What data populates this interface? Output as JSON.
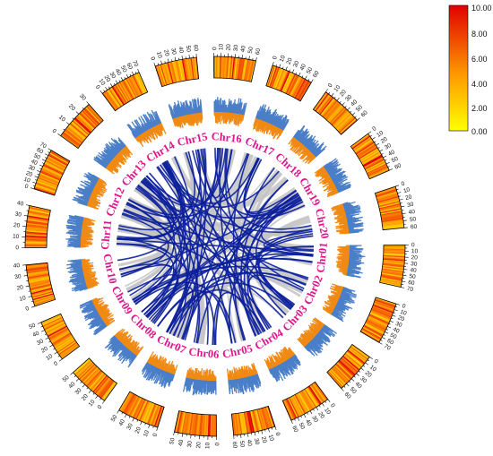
{
  "colors": {
    "label": "#e0148c",
    "link_main": "#0b1f9c",
    "link_background": "#c4c4c4",
    "density_outer": "#4a7fc8",
    "density_inner": "#f08a14",
    "heat_low": "#ffff00",
    "heat_mid": "#ff8c00",
    "heat_high": "#e00000",
    "ideogram_outline": "#000000"
  },
  "chromosomes": [
    {
      "name": "Chr01",
      "max": 70,
      "ticks": [
        "0",
        "10",
        "20",
        "30",
        "40",
        "50",
        "60",
        "70"
      ]
    },
    {
      "name": "Chr02",
      "max": 70,
      "ticks": [
        "0",
        "10",
        "20",
        "30",
        "40",
        "50",
        "60",
        "70"
      ]
    },
    {
      "name": "Chr03",
      "max": 60,
      "ticks": [
        "0",
        "10",
        "20",
        "30",
        "40",
        "50",
        "60"
      ]
    },
    {
      "name": "Chr04",
      "max": 60,
      "ticks": [
        "0",
        "10",
        "20",
        "30",
        "40",
        "50",
        "60"
      ]
    },
    {
      "name": "Chr05",
      "max": 60,
      "ticks": [
        "0",
        "10",
        "20",
        "30",
        "40",
        "50",
        "60"
      ]
    },
    {
      "name": "Chr06",
      "max": 50,
      "ticks": [
        "0",
        "10",
        "20",
        "30",
        "40",
        "50"
      ]
    },
    {
      "name": "Chr07",
      "max": 50,
      "ticks": [
        "0",
        "10",
        "20",
        "30",
        "40",
        "50"
      ]
    },
    {
      "name": "Chr08",
      "max": 50,
      "ticks": [
        "0",
        "10",
        "20",
        "30",
        "40",
        "50"
      ]
    },
    {
      "name": "Chr09",
      "max": 50,
      "ticks": [
        "0",
        "10",
        "20",
        "30",
        "40",
        "50"
      ]
    },
    {
      "name": "Chr10",
      "max": 40,
      "ticks": [
        "0",
        "10",
        "20",
        "30",
        "40"
      ]
    },
    {
      "name": "Chr11",
      "max": 40,
      "ticks": [
        "0",
        "10",
        "20",
        "30",
        "40"
      ]
    },
    {
      "name": "Chr12",
      "max": 70,
      "ticks": [
        "0",
        "10",
        "20",
        "30",
        "40",
        "50",
        "60",
        "70"
      ]
    },
    {
      "name": "Chr13",
      "max": 30,
      "ticks": [
        "0",
        "10",
        "20",
        "30"
      ]
    },
    {
      "name": "Chr14",
      "max": 70,
      "ticks": [
        "0",
        "10",
        "20",
        "30",
        "40",
        "50",
        "60",
        "70"
      ]
    },
    {
      "name": "Chr15",
      "max": 60,
      "ticks": [
        "0",
        "10",
        "20",
        "30",
        "40",
        "50",
        "60"
      ]
    },
    {
      "name": "Chr16",
      "max": 60,
      "ticks": [
        "0",
        "10",
        "20",
        "30",
        "40",
        "50",
        "60"
      ]
    },
    {
      "name": "Chr17",
      "max": 60,
      "ticks": [
        "0",
        "10",
        "20",
        "30",
        "40",
        "50",
        "60"
      ]
    },
    {
      "name": "Chr18",
      "max": 60,
      "ticks": [
        "0",
        "10",
        "20",
        "30",
        "40",
        "50",
        "60"
      ]
    },
    {
      "name": "Chr19",
      "max": 60,
      "ticks": [
        "0",
        "10",
        "20",
        "30",
        "40",
        "50",
        "60"
      ]
    },
    {
      "name": "Chr20",
      "max": 60,
      "ticks": [
        "0",
        "10",
        "20",
        "30",
        "40",
        "50",
        "60"
      ]
    }
  ],
  "legend": {
    "labels": [
      "10.00",
      "8.00",
      "6.00",
      "4.00",
      "2.00",
      "0.00"
    ]
  },
  "links": {
    "main_count": 110,
    "background_count": 60
  }
}
